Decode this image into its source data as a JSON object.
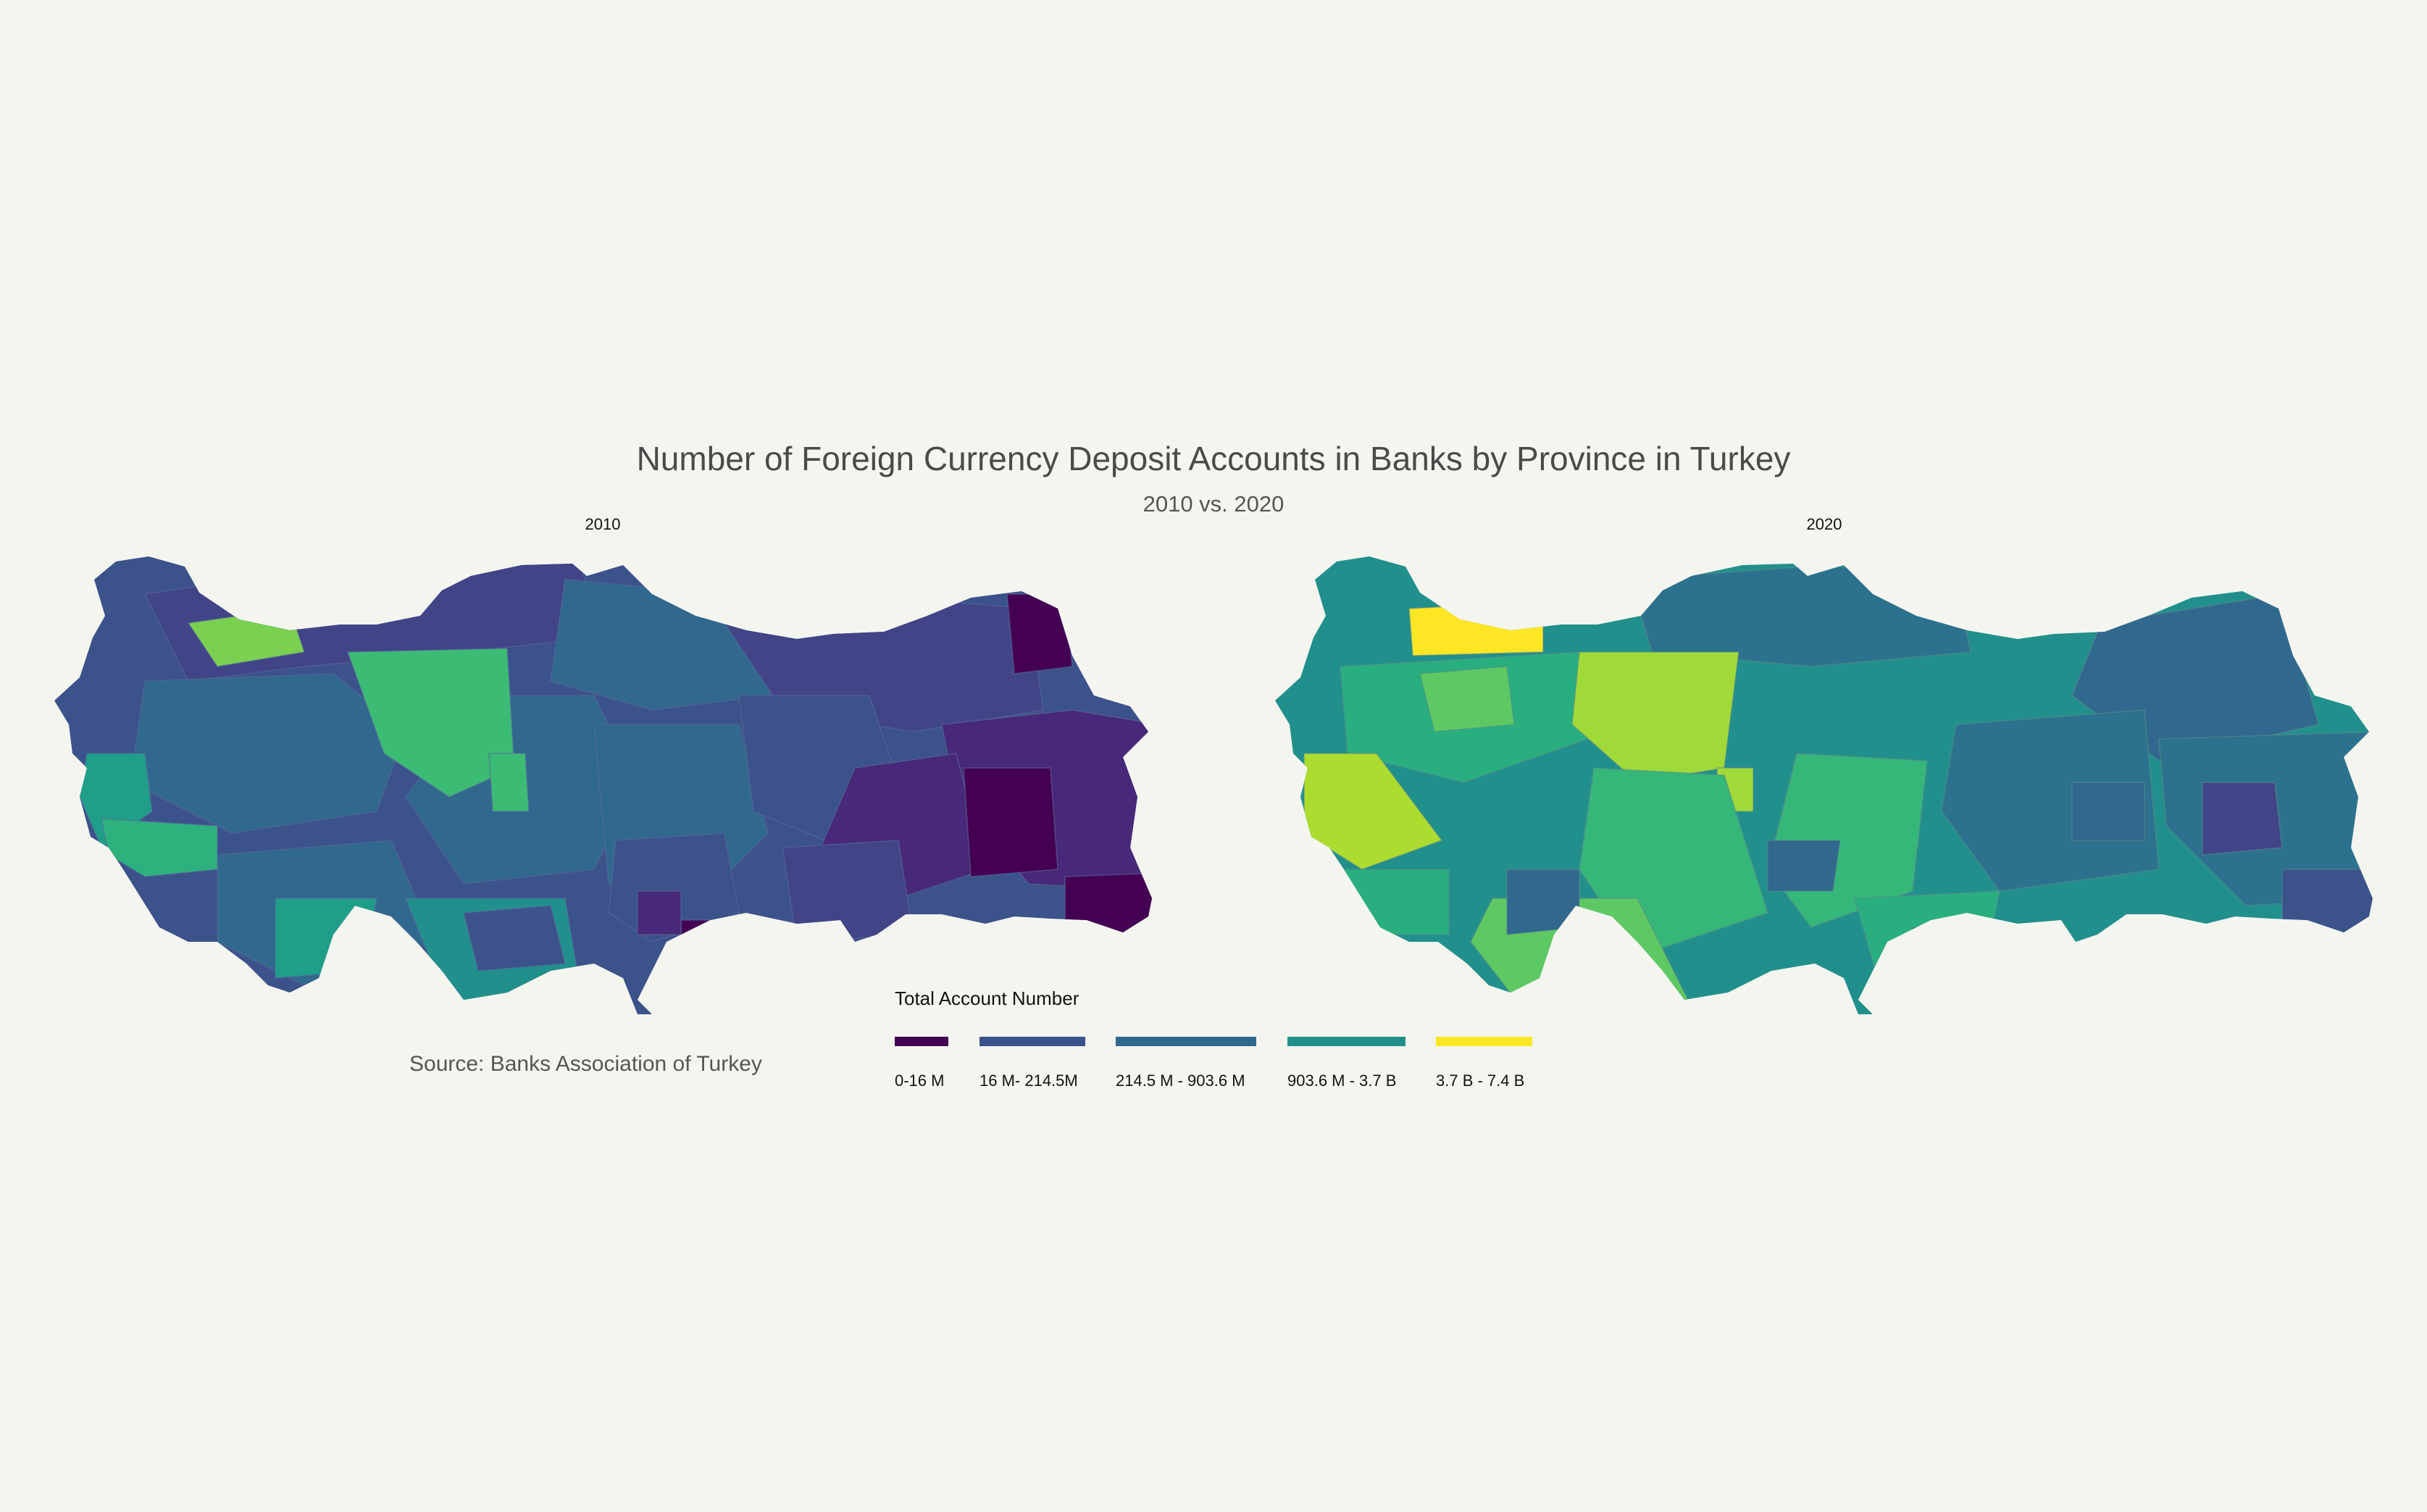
{
  "title": "Number of Foreign Currency Deposit Accounts in Banks by Province in Turkey",
  "subtitle": "2010 vs. 2020",
  "source": "Source: Banks Association of Turkey",
  "legend": {
    "title": "Total Account Number",
    "items": [
      {
        "label": "0-16 M",
        "color": "#440154"
      },
      {
        "label": "16 M- 214.5M",
        "color": "#3b528b"
      },
      {
        "label": "214.5 M - 903.6 M",
        "color": "#31688e"
      },
      {
        "label": "903.6 M - 3.7 B",
        "color": "#21908c"
      },
      {
        "label": "3.7 B - 7.4 B",
        "color": "#fde725"
      }
    ]
  },
  "chart_data": {
    "type": "choropleth",
    "region": "Turkey provinces",
    "panels": [
      {
        "year": "2010",
        "highlights": [
          {
            "province": "Istanbul",
            "bin": "3.7 B - 7.4 B",
            "color": "#7ad151"
          },
          {
            "province": "Ankara",
            "bin": "903.6 M - 3.7 B",
            "color": "#3cbb75"
          },
          {
            "province": "Izmir",
            "bin": "903.6 M - 3.7 B",
            "color": "#1f9e89"
          },
          {
            "province": "Ardahan",
            "bin": "0-16 M",
            "color": "#440154"
          },
          {
            "province": "Hakkari",
            "bin": "0-16 M",
            "color": "#440154"
          },
          {
            "province": "Van",
            "bin": "16 M- 214.5M",
            "color": "#482878"
          }
        ]
      },
      {
        "year": "2020",
        "highlights": [
          {
            "province": "Istanbul",
            "bin": "3.7 B - 7.4 B",
            "color": "#fde725"
          },
          {
            "province": "Ankara",
            "bin": "3.7 B - 7.4 B",
            "color": "#a0da39"
          },
          {
            "province": "Izmir",
            "bin": "903.6 M - 3.7 B",
            "color": "#addc30"
          },
          {
            "province": "Antalya",
            "bin": "903.6 M - 3.7 B",
            "color": "#5ec962"
          },
          {
            "province": "Hakkari",
            "bin": "16 M- 214.5M",
            "color": "#3b528b"
          },
          {
            "province": "Kilis",
            "bin": "16 M- 214.5M",
            "color": "#3b528b"
          }
        ]
      }
    ]
  }
}
